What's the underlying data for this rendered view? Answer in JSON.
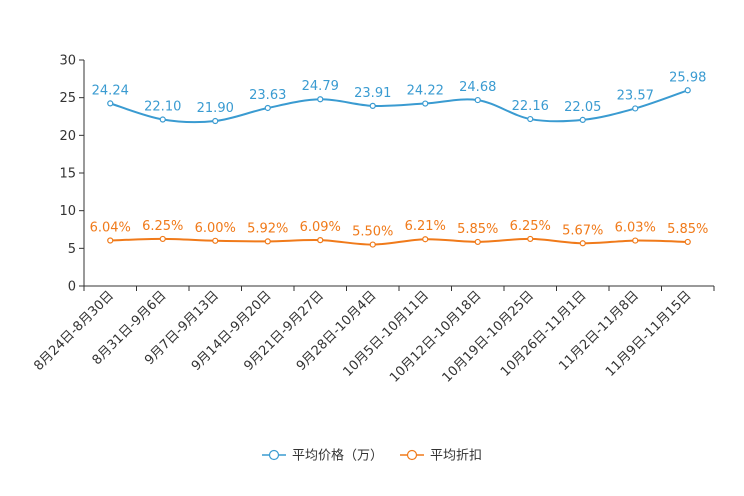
{
  "chart_data": {
    "type": "line",
    "categories": [
      "8月24日-8月30日",
      "8月31日-9月6日",
      "9月7日-9月13日",
      "9月14日-9月20日",
      "9月21日-9月27日",
      "9月28日-10月4日",
      "10月5日-10月11日",
      "10月12日-10月18日",
      "10月19日-10月25日",
      "10月26日-11月1日",
      "11月2日-11月8日",
      "11月9日-11月15日"
    ],
    "series": [
      {
        "name": "平均价格（万）",
        "color": "#3a9bd1",
        "values": [
          24.24,
          22.1,
          21.9,
          23.63,
          24.79,
          23.91,
          24.22,
          24.68,
          22.16,
          22.05,
          23.57,
          25.98
        ],
        "labels": [
          "24.24",
          "22.10",
          "21.90",
          "23.63",
          "24.79",
          "23.91",
          "24.22",
          "24.68",
          "22.16",
          "22.05",
          "23.57",
          "25.98"
        ]
      },
      {
        "name": "平均折扣",
        "color": "#f07a1a",
        "values": [
          6.04,
          6.25,
          6.0,
          5.92,
          6.09,
          5.5,
          6.21,
          5.85,
          6.25,
          5.67,
          6.03,
          5.85
        ],
        "labels": [
          "6.04%",
          "6.25%",
          "6.00%",
          "5.92%",
          "6.09%",
          "5.50%",
          "6.21%",
          "5.85%",
          "6.25%",
          "5.67%",
          "6.03%",
          "5.85%"
        ]
      }
    ],
    "ylim": [
      0,
      30
    ],
    "yticks": [
      "0",
      "5",
      "10",
      "15",
      "20",
      "25",
      "30"
    ],
    "legend_position": "bottom-center",
    "title": "",
    "xlabel": "",
    "ylabel": ""
  }
}
